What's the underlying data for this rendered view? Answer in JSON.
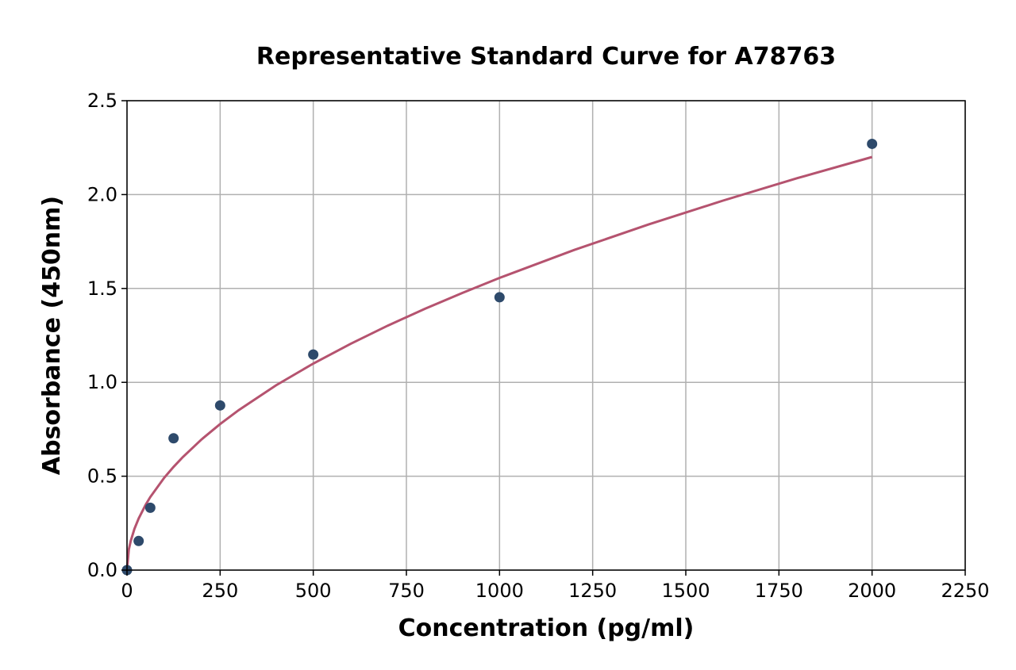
{
  "chart_data": {
    "type": "scatter",
    "title": "Representative Standard Curve for A78763",
    "xlabel": "Concentration (pg/ml)",
    "ylabel": "Absorbance (450nm)",
    "xlim": [
      0,
      2250
    ],
    "ylim": [
      0,
      2.5
    ],
    "x_ticks": [
      0,
      250,
      500,
      750,
      1000,
      1250,
      1500,
      1750,
      2000,
      2250
    ],
    "x_tick_labels": [
      "0",
      "250",
      "500",
      "750",
      "1000",
      "1250",
      "1500",
      "1750",
      "2000",
      "2250"
    ],
    "y_ticks": [
      0.0,
      0.5,
      1.0,
      1.5,
      2.0,
      2.5
    ],
    "y_tick_labels": [
      "0.0",
      "0.5",
      "1.0",
      "1.5",
      "2.0",
      "2.5"
    ],
    "grid": true,
    "legend": "none",
    "series": [
      {
        "type": "scatter",
        "color": "#2e4a6b",
        "x": [
          0,
          31.25,
          62.5,
          125,
          250,
          500,
          1000,
          2000
        ],
        "y": [
          0.0,
          0.155,
          0.332,
          0.702,
          0.877,
          1.148,
          1.453,
          2.27
        ]
      },
      {
        "type": "line",
        "color": "#b5536f",
        "x": [
          0,
          5,
          10,
          20,
          31.25,
          50,
          62.5,
          100,
          125,
          150,
          200,
          250,
          300,
          400,
          500,
          600,
          700,
          800,
          900,
          1000,
          1200,
          1400,
          1600,
          1800,
          2000
        ],
        "y": [
          0.0,
          0.11,
          0.155,
          0.22,
          0.275,
          0.348,
          0.389,
          0.492,
          0.55,
          0.602,
          0.696,
          0.778,
          0.852,
          0.984,
          1.1,
          1.205,
          1.302,
          1.392,
          1.476,
          1.556,
          1.705,
          1.841,
          1.968,
          2.088,
          2.2
        ]
      }
    ]
  }
}
